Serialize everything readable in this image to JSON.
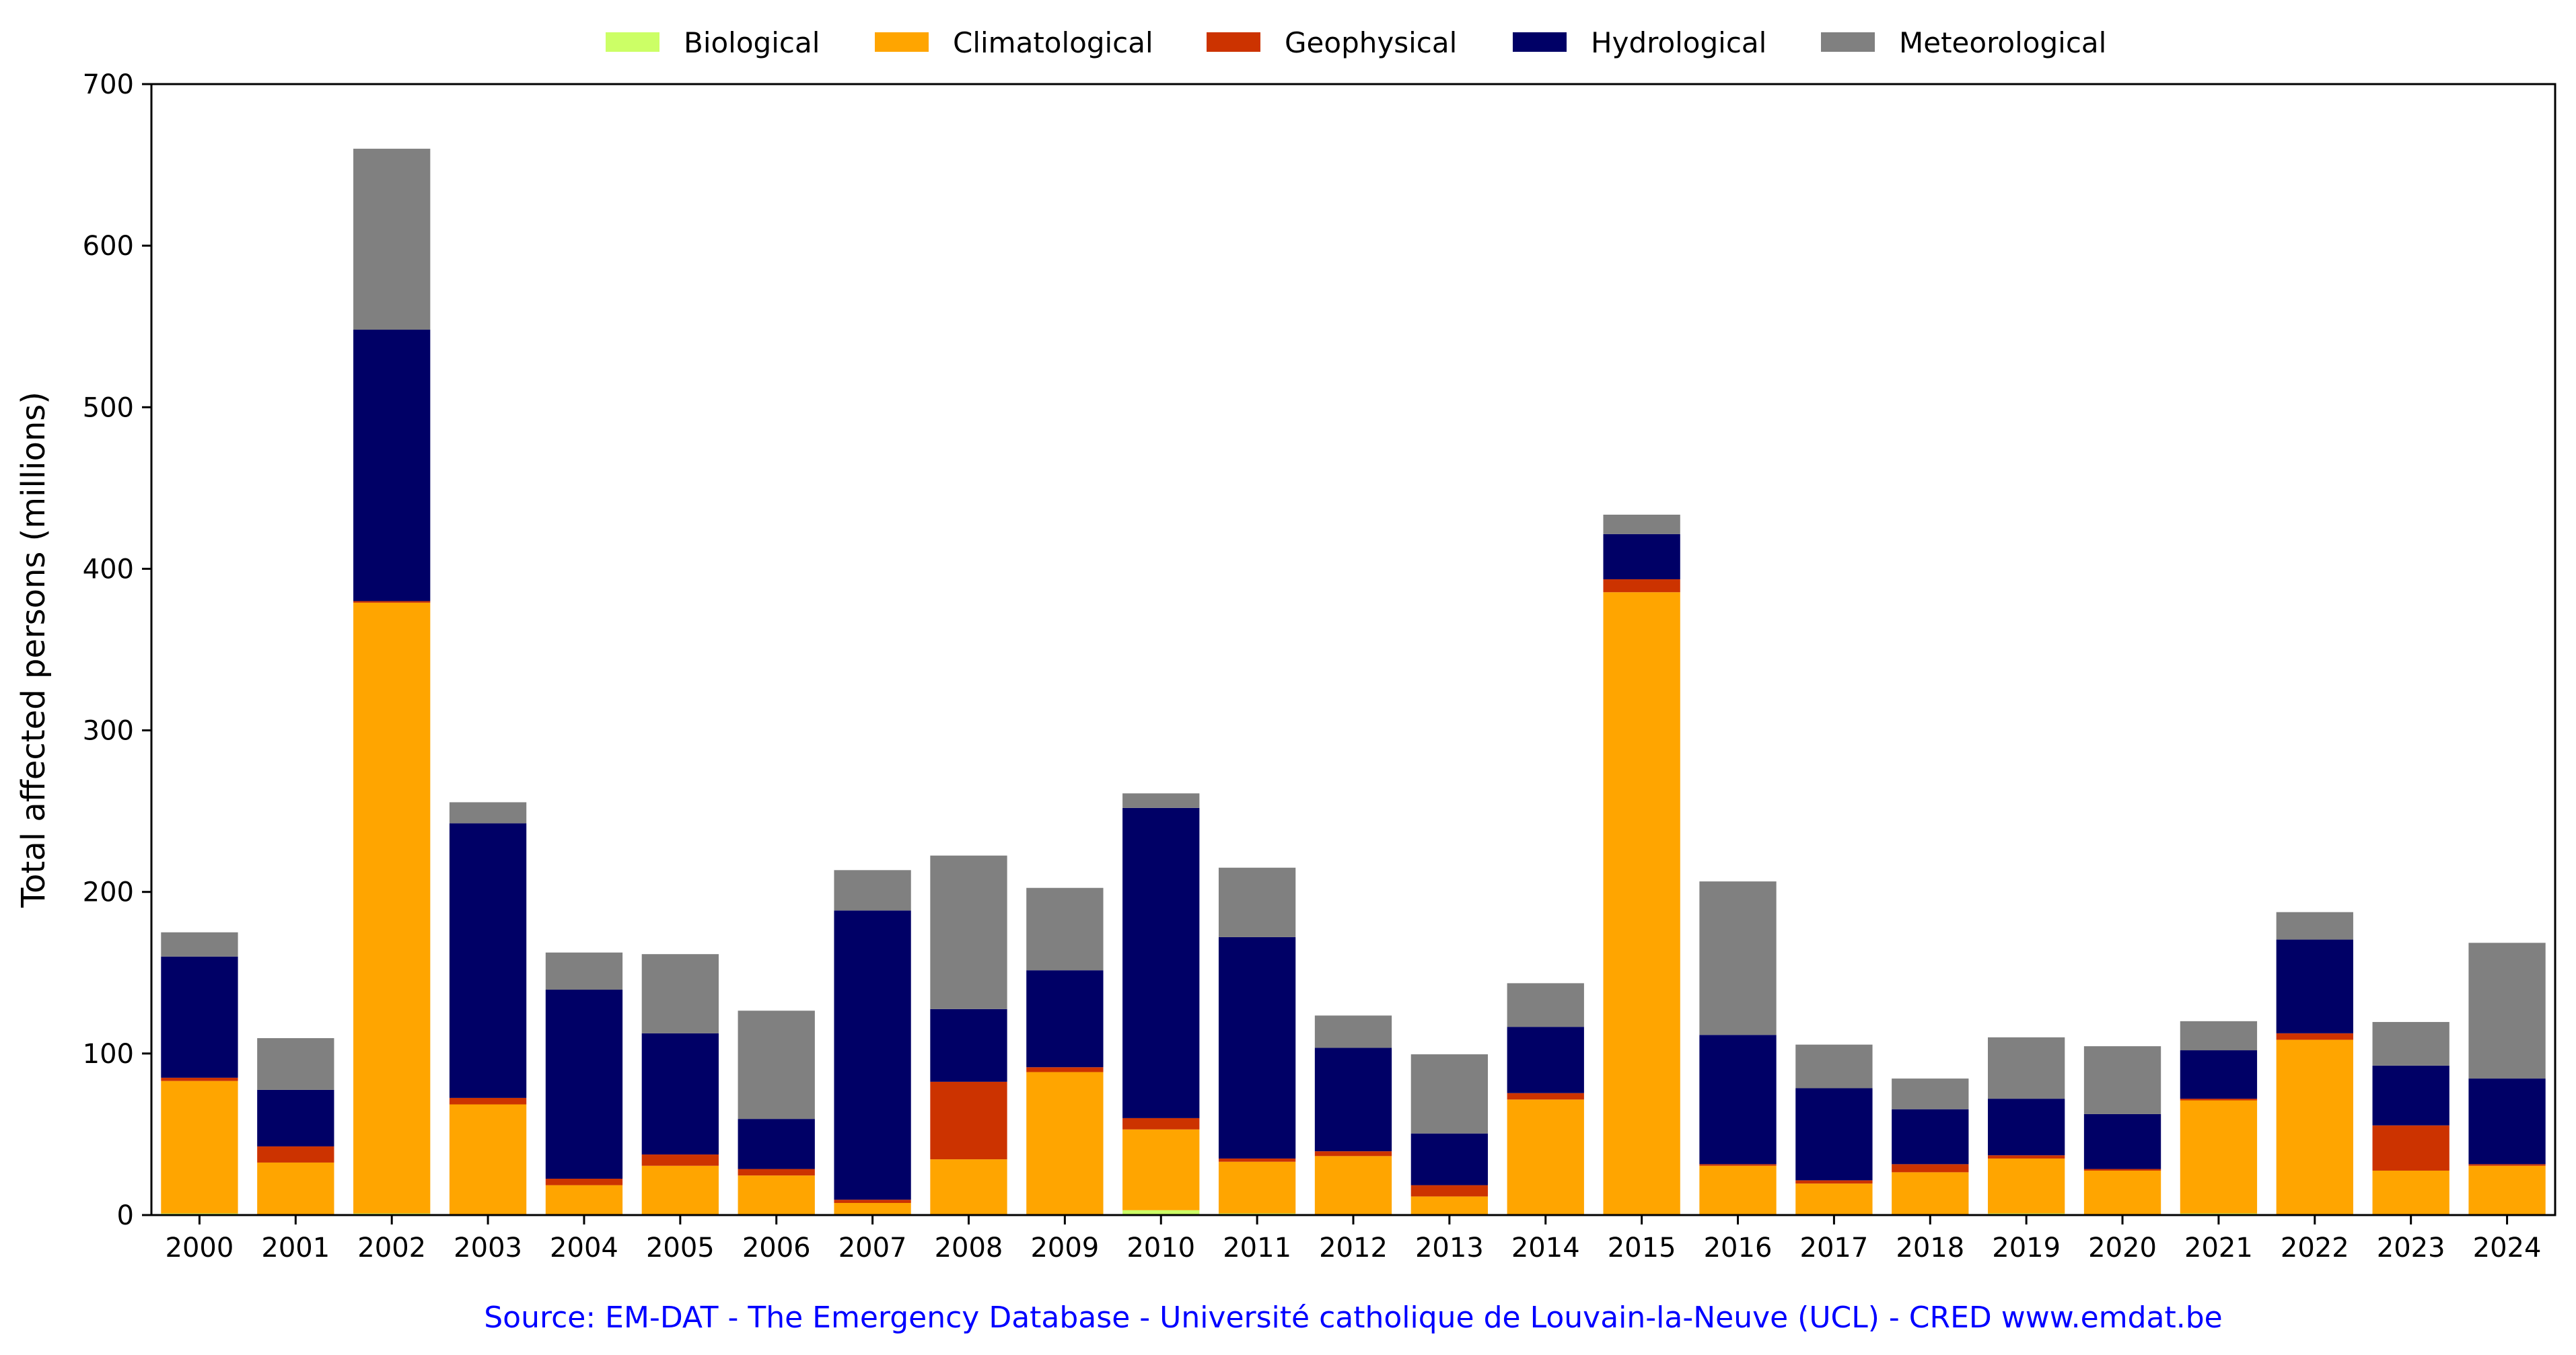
{
  "chart_data": {
    "type": "bar",
    "stacked": true,
    "categories": [
      "2000",
      "2001",
      "2002",
      "2003",
      "2004",
      "2005",
      "2006",
      "2007",
      "2008",
      "2009",
      "2010",
      "2011",
      "2012",
      "2013",
      "2014",
      "2015",
      "2016",
      "2017",
      "2018",
      "2019",
      "2020",
      "2021",
      "2022",
      "2023",
      "2024"
    ],
    "series": [
      {
        "name": "Biological",
        "color": "#ccff66",
        "values": [
          1,
          0.5,
          1,
          0.5,
          0.5,
          0.5,
          0.5,
          0.5,
          0.5,
          0.5,
          3,
          1,
          0.5,
          0.5,
          0.5,
          0.5,
          0.5,
          0.5,
          0.5,
          1,
          0.5,
          1,
          0.5,
          0.5,
          0.5
        ]
      },
      {
        "name": "Climatological",
        "color": "#ffa500",
        "values": [
          82,
          32,
          378,
          68,
          18,
          30,
          24,
          7,
          34,
          88,
          50,
          32,
          36,
          11,
          71,
          385,
          30,
          19,
          26,
          34,
          27,
          70,
          108,
          27,
          30
        ]
      },
      {
        "name": "Geophysical",
        "color": "#cc3300",
        "values": [
          2,
          10,
          1,
          4,
          4,
          7,
          4,
          2,
          48,
          3,
          7,
          2,
          3,
          7,
          4,
          8,
          1,
          2,
          5,
          2,
          1,
          1,
          4,
          28,
          1
        ]
      },
      {
        "name": "Hydrological",
        "color": "#000066",
        "values": [
          75,
          35,
          168,
          170,
          117,
          75,
          31,
          179,
          45,
          60,
          192,
          137,
          64,
          32,
          41,
          28,
          80,
          57,
          34,
          35,
          34,
          30,
          58,
          37,
          53
        ]
      },
      {
        "name": "Meteorological",
        "color": "#808080",
        "values": [
          15,
          32,
          112,
          13,
          23,
          49,
          67,
          25,
          95,
          51,
          9,
          43,
          20,
          49,
          27,
          12,
          95,
          27,
          19,
          38,
          42,
          18,
          17,
          27,
          84
        ]
      }
    ],
    "ylabel": "Total affected persons (millions)",
    "xlabel": "",
    "title": "",
    "ylim": [
      0,
      700
    ],
    "yticks": [
      0,
      100,
      200,
      300,
      400,
      500,
      600,
      700
    ],
    "legend_position": "top-center",
    "grid": false
  },
  "source": {
    "text": "Source: EM-DAT - The Emergency Database - Université catholique de Louvain-la-Neuve (UCL) - CRED www.emdat.be",
    "color": "#0000ff"
  }
}
